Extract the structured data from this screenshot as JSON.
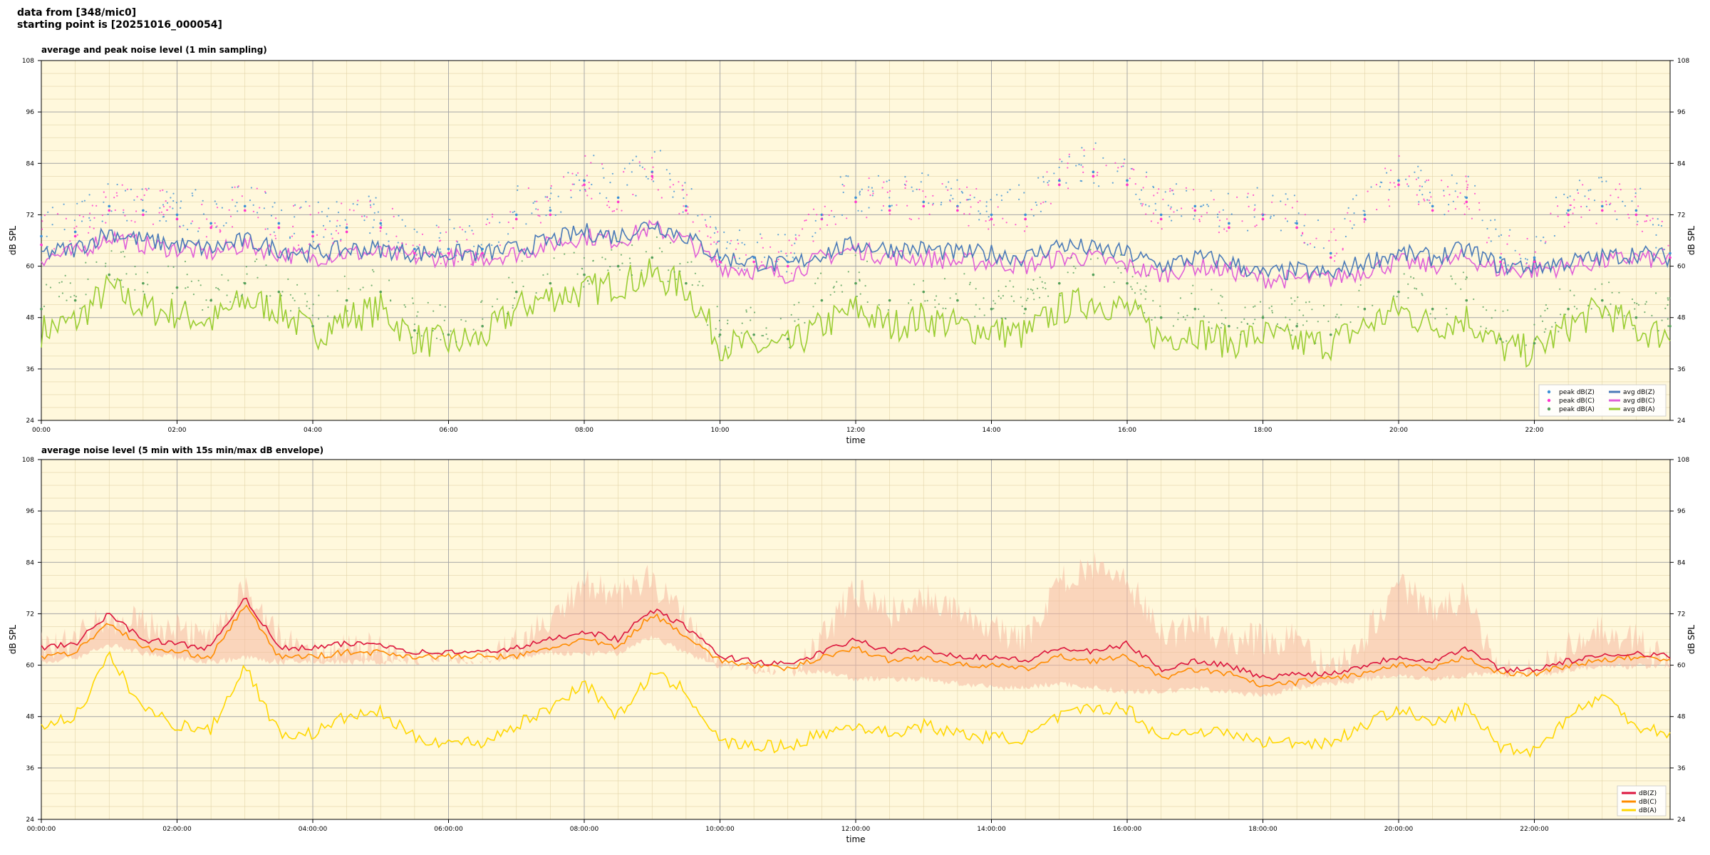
{
  "header": {
    "line1": "data from [348/mic0]",
    "line2": "starting point is [20251016_000054]"
  },
  "colors": {
    "background": "#fff8dc",
    "peak_z": "#3a8fd6",
    "peak_c": "#ff33cc",
    "peak_a": "#55a05a",
    "avg_z": "#4a7ab8",
    "avg_c": "#e060d8",
    "avg_a": "#9acd32",
    "env": "#f5b8a0",
    "bottom_z": "#dc143c",
    "bottom_c": "#ff8c00",
    "bottom_a": "#ffd700"
  },
  "chart_data": [
    {
      "type": "line",
      "title": "average and peak noise level (1 min sampling)",
      "xlabel": "time",
      "ylabel": "dB SPL",
      "xlim": [
        0,
        24
      ],
      "ylim": [
        24,
        108
      ],
      "yticks": [
        24,
        36,
        48,
        60,
        72,
        84,
        96,
        108
      ],
      "xtick_labels": [
        "00:00",
        "02:00",
        "04:00",
        "06:00",
        "08:00",
        "10:00",
        "12:00",
        "14:00",
        "16:00",
        "18:00",
        "20:00",
        "22:00"
      ],
      "grid": true,
      "legend_position": "lower-right",
      "x": [
        0,
        0.5,
        1,
        1.5,
        2,
        2.5,
        3,
        3.5,
        4,
        4.5,
        5,
        5.5,
        6,
        6.5,
        7,
        7.5,
        8,
        8.5,
        9,
        9.5,
        10,
        10.5,
        11,
        11.5,
        12,
        12.5,
        13,
        13.5,
        14,
        14.5,
        15,
        15.5,
        16,
        16.5,
        17,
        17.5,
        18,
        18.5,
        19,
        19.5,
        20,
        20.5,
        21,
        21.5,
        22,
        22.5,
        23,
        23.5,
        24
      ],
      "series": [
        {
          "name": "peak dB(Z)",
          "kind": "scatter",
          "values": [
            67,
            68,
            74,
            73,
            72,
            70,
            74,
            70,
            68,
            69,
            70,
            64,
            64,
            64,
            72,
            73,
            80,
            76,
            82,
            74,
            62,
            62,
            61,
            72,
            76,
            74,
            75,
            74,
            72,
            72,
            80,
            82,
            80,
            72,
            74,
            70,
            72,
            70,
            63,
            72,
            80,
            74,
            76,
            62,
            62,
            73,
            74,
            73,
            63
          ]
        },
        {
          "name": "peak dB(C)",
          "kind": "scatter",
          "values": [
            65,
            67,
            73,
            72,
            71,
            69,
            73,
            69,
            67,
            68,
            69,
            63,
            63,
            63,
            71,
            72,
            79,
            75,
            81,
            73,
            61,
            61,
            60,
            71,
            75,
            73,
            74,
            73,
            71,
            71,
            79,
            81,
            79,
            71,
            73,
            69,
            71,
            69,
            62,
            71,
            79,
            73,
            75,
            61,
            61,
            72,
            73,
            72,
            62
          ]
        },
        {
          "name": "peak dB(A)",
          "kind": "scatter",
          "values": [
            50,
            52,
            58,
            56,
            55,
            52,
            56,
            54,
            46,
            52,
            54,
            45,
            44,
            46,
            54,
            56,
            58,
            60,
            62,
            56,
            44,
            44,
            43,
            52,
            56,
            52,
            54,
            52,
            50,
            50,
            56,
            58,
            56,
            48,
            50,
            46,
            48,
            46,
            44,
            50,
            54,
            50,
            52,
            43,
            42,
            50,
            52,
            48,
            46
          ]
        },
        {
          "name": "avg dB(Z)",
          "kind": "line",
          "values": [
            63,
            64,
            68,
            66,
            65,
            64,
            66,
            64,
            63,
            64,
            64,
            63,
            63,
            63,
            64,
            66,
            68,
            67,
            70,
            67,
            62,
            61,
            60,
            63,
            65,
            64,
            64,
            63,
            63,
            62,
            65,
            64,
            63,
            60,
            62,
            61,
            58,
            59,
            58,
            61,
            63,
            62,
            64,
            60,
            60,
            61,
            62,
            63,
            62
          ]
        },
        {
          "name": "avg dB(C)",
          "kind": "line",
          "values": [
            62,
            63,
            67,
            65,
            64,
            63,
            65,
            63,
            62,
            63,
            63,
            62,
            62,
            62,
            63,
            65,
            67,
            66,
            69,
            66,
            60,
            59,
            58,
            62,
            64,
            62,
            62,
            61,
            61,
            60,
            62,
            62,
            60,
            58,
            60,
            59,
            57,
            57,
            57,
            59,
            61,
            60,
            62,
            59,
            59,
            60,
            61,
            62,
            61
          ]
        },
        {
          "name": "avg dB(A)",
          "kind": "line",
          "values": [
            45,
            47,
            55,
            50,
            49,
            47,
            52,
            50,
            44,
            48,
            50,
            43,
            42,
            43,
            50,
            53,
            54,
            56,
            58,
            55,
            42,
            41,
            41,
            46,
            50,
            46,
            48,
            46,
            45,
            44,
            50,
            52,
            50,
            43,
            45,
            42,
            44,
            42,
            42,
            46,
            50,
            46,
            48,
            41,
            40,
            46,
            50,
            45,
            44
          ]
        }
      ]
    },
    {
      "type": "line",
      "title": "average noise level (5 min with 15s min/max dB envelope)",
      "xlabel": "time",
      "ylabel": "dB SPL",
      "xlim": [
        0,
        24
      ],
      "ylim": [
        24,
        108
      ],
      "yticks": [
        24,
        36,
        48,
        60,
        72,
        84,
        96,
        108
      ],
      "xtick_labels": [
        "00:00:00",
        "02:00:00",
        "04:00:00",
        "06:00:00",
        "08:00:00",
        "10:00:00",
        "12:00:00",
        "14:00:00",
        "16:00:00",
        "18:00:00",
        "20:00:00",
        "22:00:00"
      ],
      "grid": true,
      "legend_position": "lower-right",
      "x": [
        0,
        0.5,
        1,
        1.5,
        2,
        2.5,
        3,
        3.5,
        4,
        4.5,
        5,
        5.5,
        6,
        6.5,
        7,
        7.5,
        8,
        8.5,
        9,
        9.5,
        10,
        10.5,
        11,
        11.5,
        12,
        12.5,
        13,
        13.5,
        14,
        14.5,
        15,
        15.5,
        16,
        16.5,
        17,
        17.5,
        18,
        18.5,
        19,
        19.5,
        20,
        20.5,
        21,
        21.5,
        22,
        22.5,
        23,
        23.5,
        24
      ],
      "envelope": {
        "upper": [
          68,
          70,
          75,
          74,
          72,
          70,
          82,
          70,
          66,
          68,
          68,
          64,
          64,
          64,
          70,
          74,
          84,
          80,
          84,
          74,
          62,
          61,
          60,
          70,
          82,
          76,
          80,
          76,
          72,
          70,
          84,
          88,
          84,
          70,
          74,
          70,
          70,
          70,
          62,
          70,
          84,
          76,
          80,
          62,
          62,
          68,
          72,
          70,
          64
        ],
        "lower": [
          60,
          61,
          64,
          62,
          61,
          60,
          61,
          60,
          60,
          60,
          60,
          60,
          60,
          60,
          61,
          62,
          62,
          62,
          66,
          62,
          59,
          58,
          57,
          58,
          56,
          56,
          56,
          55,
          54,
          54,
          55,
          54,
          53,
          53,
          54,
          53,
          52,
          54,
          55,
          56,
          57,
          56,
          57,
          57,
          57,
          58,
          59,
          59,
          59
        ]
      },
      "series": [
        {
          "name": "dB(Z)",
          "values": [
            64,
            65,
            72,
            66,
            65,
            64,
            76,
            64,
            64,
            65,
            65,
            63,
            63,
            63,
            64,
            66,
            68,
            66,
            73,
            69,
            62,
            61,
            60,
            63,
            66,
            63,
            64,
            62,
            62,
            61,
            64,
            63,
            65,
            59,
            61,
            60,
            57,
            58,
            58,
            60,
            62,
            61,
            64,
            59,
            59,
            61,
            62,
            63,
            62
          ]
        },
        {
          "name": "dB(C)",
          "values": [
            62,
            63,
            70,
            64,
            63,
            62,
            74,
            62,
            62,
            63,
            63,
            62,
            62,
            62,
            62,
            64,
            66,
            64,
            72,
            67,
            61,
            60,
            59,
            62,
            64,
            61,
            62,
            60,
            60,
            59,
            62,
            61,
            62,
            57,
            59,
            58,
            55,
            56,
            57,
            58,
            60,
            59,
            62,
            58,
            58,
            60,
            61,
            62,
            61
          ]
        },
        {
          "name": "dB(A)",
          "values": [
            46,
            48,
            62,
            50,
            46,
            45,
            60,
            44,
            44,
            48,
            49,
            43,
            42,
            42,
            46,
            50,
            56,
            48,
            58,
            54,
            42,
            41,
            41,
            44,
            46,
            44,
            46,
            44,
            43,
            43,
            48,
            50,
            50,
            43,
            45,
            44,
            42,
            42,
            42,
            46,
            50,
            46,
            50,
            41,
            40,
            48,
            53,
            46,
            44
          ]
        }
      ]
    }
  ]
}
